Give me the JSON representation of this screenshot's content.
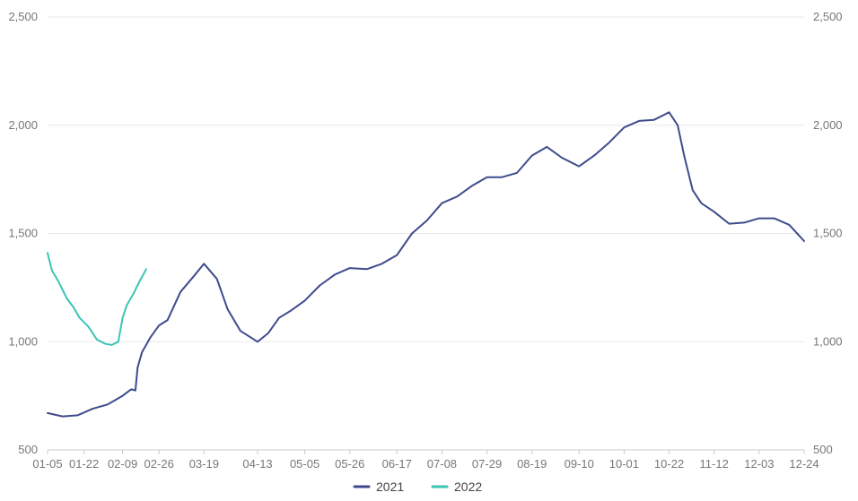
{
  "chart_data": {
    "type": "line",
    "title": "",
    "xlabel": "",
    "ylabel": "",
    "ylim": [
      500,
      2500
    ],
    "yticks": [
      500,
      1000,
      1500,
      2000,
      2500
    ],
    "ytick_labels": [
      "500",
      "1,000",
      "1,500",
      "2,000",
      "2,500"
    ],
    "xticks": [
      "01-05",
      "01-22",
      "02-09",
      "02-26",
      "03-19",
      "04-13",
      "05-05",
      "05-26",
      "06-17",
      "07-08",
      "07-29",
      "08-19",
      "09-10",
      "10-01",
      "10-22",
      "11-12",
      "12-03",
      "12-24"
    ],
    "xlim": [
      "01-05",
      "12-24"
    ],
    "grid": true,
    "legend_position": "bottom",
    "colors": {
      "2021": "#3f4b8c",
      "2022": "#3cc4b4"
    },
    "series": [
      {
        "name": "2021",
        "color": "#3f4b8c",
        "x": [
          "01-05",
          "01-12",
          "01-19",
          "01-26",
          "02-02",
          "02-09",
          "02-13",
          "02-15",
          "02-16",
          "02-18",
          "02-22",
          "02-26",
          "03-02",
          "03-08",
          "03-14",
          "03-19",
          "03-25",
          "03-30",
          "04-05",
          "04-13",
          "04-18",
          "04-23",
          "04-28",
          "05-05",
          "05-12",
          "05-19",
          "05-26",
          "06-03",
          "06-10",
          "06-17",
          "06-24",
          "07-01",
          "07-08",
          "07-15",
          "07-22",
          "07-29",
          "08-05",
          "08-12",
          "08-19",
          "08-26",
          "09-02",
          "09-10",
          "09-17",
          "09-24",
          "10-01",
          "10-08",
          "10-15",
          "10-22",
          "10-26",
          "10-29",
          "11-02",
          "11-06",
          "11-12",
          "11-19",
          "11-26",
          "12-03",
          "12-10",
          "12-17",
          "12-24"
        ],
        "values": [
          670,
          655,
          660,
          690,
          710,
          750,
          780,
          775,
          880,
          950,
          1020,
          1075,
          1100,
          1230,
          1300,
          1360,
          1290,
          1150,
          1050,
          1000,
          1040,
          1110,
          1140,
          1190,
          1260,
          1310,
          1340,
          1335,
          1360,
          1400,
          1500,
          1560,
          1640,
          1670,
          1720,
          1760,
          1760,
          1780,
          1860,
          1900,
          1850,
          1810,
          1860,
          1920,
          1990,
          2020,
          2025,
          2060,
          2000,
          1860,
          1700,
          1640,
          1600,
          1545,
          1550,
          1570,
          1570,
          1540,
          1465
        ]
      },
      {
        "name": "2022",
        "color": "#3cc4b4",
        "x": [
          "01-05",
          "01-07",
          "01-10",
          "01-14",
          "01-17",
          "01-20",
          "01-24",
          "01-28",
          "02-01",
          "02-04",
          "02-07",
          "02-09",
          "02-11",
          "02-14",
          "02-17",
          "02-20"
        ],
        "values": [
          1410,
          1330,
          1280,
          1200,
          1160,
          1110,
          1070,
          1010,
          990,
          985,
          1000,
          1110,
          1170,
          1220,
          1280,
          1335
        ]
      }
    ]
  }
}
